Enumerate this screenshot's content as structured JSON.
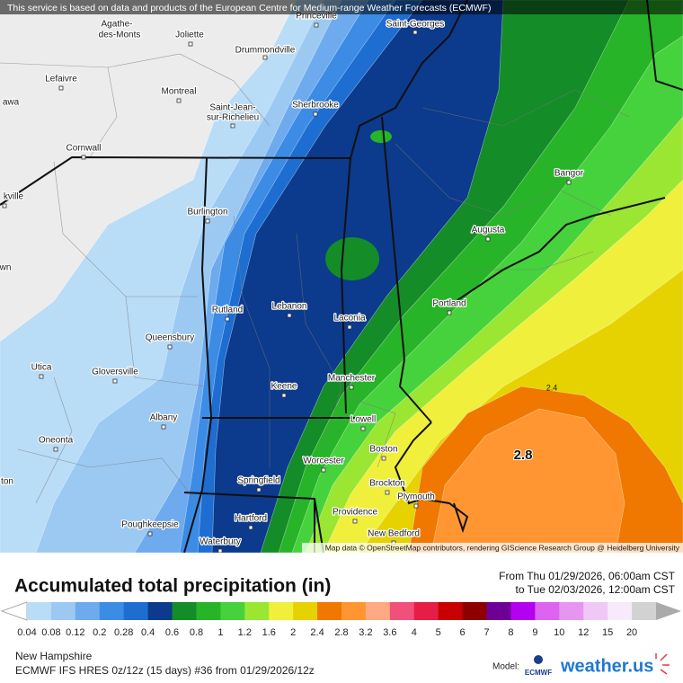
{
  "banner": "This service is based on data and products of the European Centre for Medium-range Weather Forecasts (ECMWF)",
  "title": "Accumulated total precipitation (in)",
  "from": "From Thu 01/29/2026, 06:00am CST",
  "to": "to Tue 02/03/2026, 12:00am CST",
  "map": {
    "cities": [
      "Princeville",
      "Saint-Georges",
      "Agathe-",
      "des-Monts",
      "Joliette",
      "Drummondville",
      "Lefaivre",
      "Montreal",
      "awa",
      "Saint-Jean-",
      "sur-Richelieu",
      "Sherbrooke",
      "Cornwall",
      "Bangor",
      "kville",
      "Burlington",
      "Augusta",
      "wn",
      "Portland",
      "Rutland",
      "Lebanon",
      "Laconia",
      "Queensbury",
      "Utica",
      "Gloversville",
      "Manchester",
      "Keene",
      "Lowell",
      "Albany",
      "Oneonta",
      "Boston",
      "Worcester",
      "ton",
      "Springfield",
      "Brockton",
      "Plymouth",
      "Providence",
      "Hartford",
      "Poughkeepsie",
      "New Bedford",
      "Waterbury"
    ],
    "contour_labels": [
      "2.4",
      "2.8"
    ],
    "attribution": "Map data © OpenStreetMap contributors, rendering GIScience Research Group @ Heidelberg University"
  },
  "legend": {
    "levels": [
      0.04,
      0.08,
      0.12,
      0.2,
      0.28,
      0.4,
      0.6,
      0.8,
      1,
      1.2,
      1.6,
      2,
      2.4,
      2.8,
      3.2,
      3.6,
      4,
      5,
      6,
      7,
      8,
      9,
      10,
      12,
      15,
      20
    ],
    "colors": [
      "#b9dcf7",
      "#9cc9f2",
      "#6eaaee",
      "#3c8ce6",
      "#1e6ed2",
      "#0c3a8c",
      "#148c28",
      "#28b428",
      "#46d23c",
      "#9be632",
      "#f0f03c",
      "#e6d200",
      "#f07800",
      "#ff9632",
      "#ffaa82",
      "#f0507a",
      "#e61e46",
      "#c80000",
      "#8c0000",
      "#6e0096",
      "#b400f0",
      "#dc64f0",
      "#e696f0",
      "#f0c8f5",
      "#f7eafb",
      "#d2d2d2"
    ]
  },
  "footer": {
    "region": "New Hampshire",
    "model_run": "ECMWF IFS HRES 0z/12z (15 days) #36 from  01/29/2026/12z",
    "model_label": "Model:",
    "model_name": "ECMWF",
    "brand": "weather.us"
  }
}
